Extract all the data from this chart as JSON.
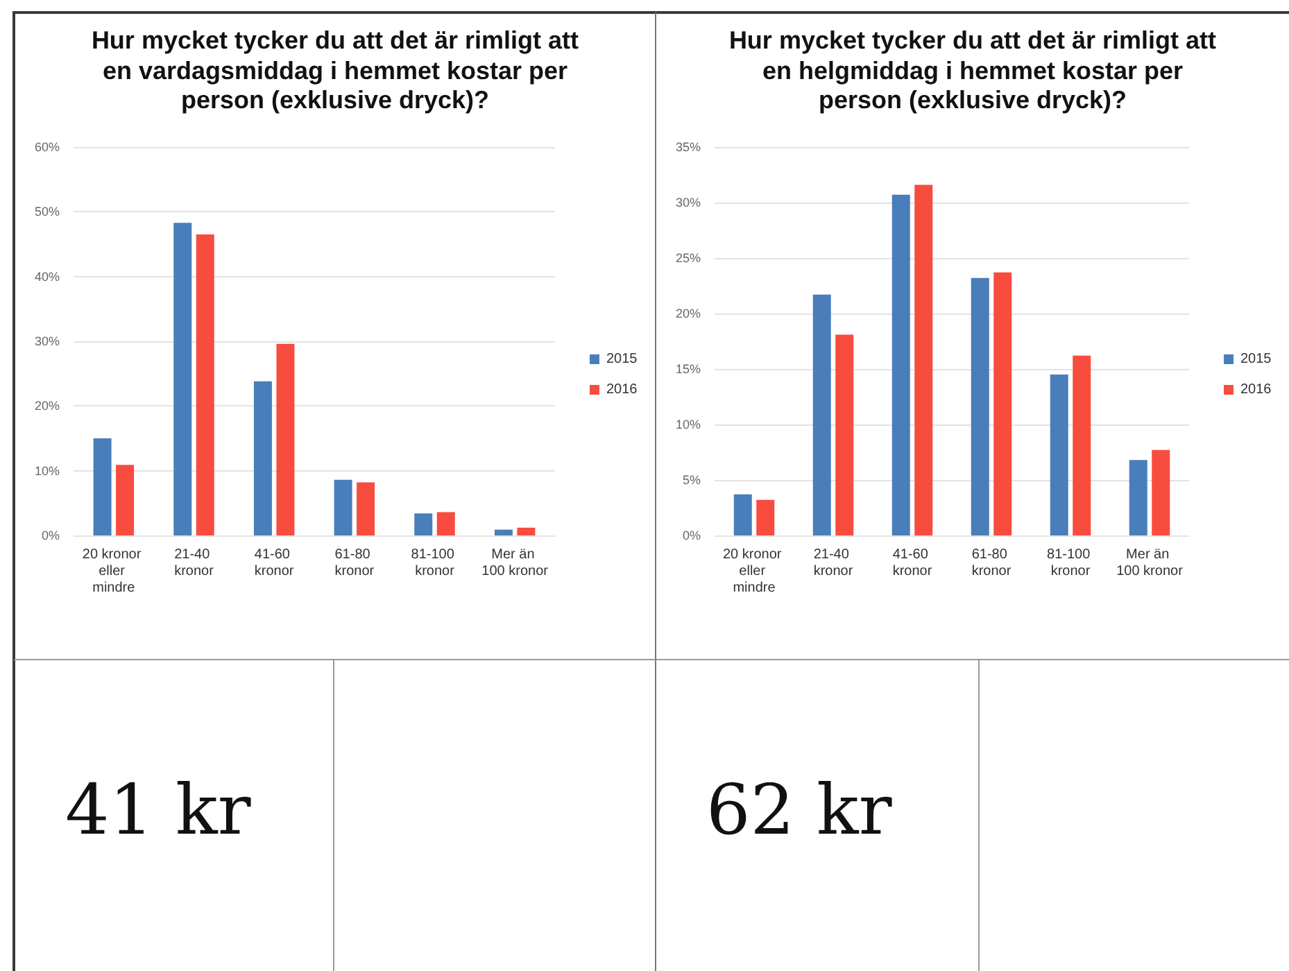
{
  "chart_data": [
    {
      "type": "bar",
      "title": "Hur mycket tycker du att det är rimligt att en vardagsmiddag i hemmet kostar per person (exklusive dryck)?",
      "categories": [
        "20 kronor eller mindre",
        "21-40 kronor",
        "41-60 kronor",
        "61-80 kronor",
        "81-100 kronor",
        "Mer än 100 kronor"
      ],
      "series": [
        {
          "name": "2015",
          "color": "#4a7ebb",
          "values": [
            15,
            48.3,
            23.8,
            8.6,
            3.4,
            0.9
          ]
        },
        {
          "name": "2016",
          "color": "#f84c3e",
          "values": [
            10.9,
            46.5,
            29.6,
            8.2,
            3.6,
            1.2
          ]
        }
      ],
      "ylim": [
        0,
        60
      ],
      "yticks": [
        {
          "value": 0,
          "label": "0%"
        },
        {
          "value": 10,
          "label": "10%"
        },
        {
          "value": 20,
          "label": "20%"
        },
        {
          "value": 30,
          "label": "30%"
        },
        {
          "value": 40,
          "label": "40%"
        },
        {
          "value": 50,
          "label": "50%"
        },
        {
          "value": 60,
          "label": "60%"
        }
      ],
      "grid": "y",
      "legend": "right"
    },
    {
      "type": "bar",
      "title": "Hur mycket tycker du att det är rimligt att en helgmiddag i hemmet kostar per person (exklusive dryck)?",
      "categories": [
        "20 kronor eller mindre",
        "21-40 kronor",
        "41-60 kronor",
        "61-80 kronor",
        "81-100 kronor",
        "Mer än 100 kronor"
      ],
      "series": [
        {
          "name": "2015",
          "color": "#4a7ebb",
          "values": [
            3.7,
            21.7,
            30.7,
            23.2,
            14.5,
            6.8
          ]
        },
        {
          "name": "2016",
          "color": "#f84c3e",
          "values": [
            3.2,
            18.1,
            31.6,
            23.7,
            16.2,
            7.7
          ]
        }
      ],
      "ylim": [
        0,
        35
      ],
      "yticks": [
        {
          "value": 0,
          "label": "0%"
        },
        {
          "value": 5,
          "label": "5%"
        },
        {
          "value": 10,
          "label": "10%"
        },
        {
          "value": 15,
          "label": "15%"
        },
        {
          "value": 20,
          "label": "20%"
        },
        {
          "value": 25,
          "label": "25%"
        },
        {
          "value": 30,
          "label": "30%"
        },
        {
          "value": 35,
          "label": "35%"
        }
      ],
      "grid": "y",
      "legend": "right"
    },
    {
      "type": "other",
      "annotations": [
        "41 kr"
      ]
    },
    {
      "type": "other",
      "annotations": [
        "62 kr"
      ]
    }
  ]
}
